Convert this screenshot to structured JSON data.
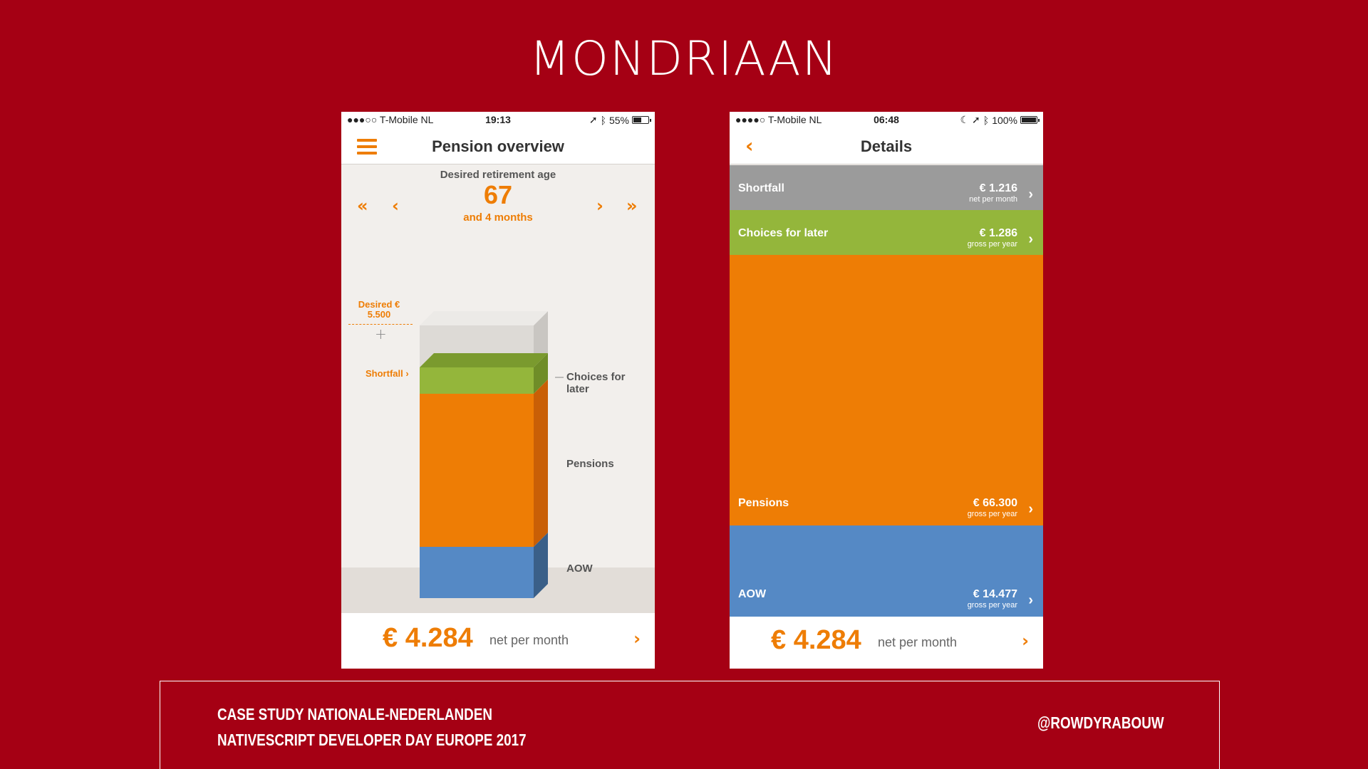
{
  "slide": {
    "title": "MONDRIAAN",
    "footer_line1": "CASE STUDY NATIONALE-NEDERLANDEN",
    "footer_line2": "NATIVESCRIPT DEVELOPER DAY EUROPE 2017",
    "handle": "@ROWDYRABOUW",
    "background": "#a50014"
  },
  "phone1": {
    "status": {
      "carrier": "●●●○○ T-Mobile NL",
      "time": "19:13",
      "battery": "55%",
      "battery_level": 0.55
    },
    "nav_title": "Pension overview",
    "menu_icon": "hamburger-icon",
    "retirement": {
      "label": "Desired retirement age",
      "age": "67",
      "sub": "and 4 months",
      "nav_first": "«",
      "nav_prev": "‹",
      "nav_next": "›",
      "nav_last": "»"
    },
    "chart": {
      "desired_label": "Desired € 5.500",
      "shortfall_label": "Shortfall ›",
      "labels": {
        "choices": "Choices for later",
        "pensions": "Pensions",
        "aow": "AOW"
      }
    },
    "footer": {
      "amount": "€ 4.284",
      "period": "net per month",
      "chevron": "›"
    }
  },
  "phone2": {
    "status": {
      "carrier": "●●●●○ T-Mobile NL",
      "time": "06:48",
      "battery": "100%",
      "battery_level": 1.0
    },
    "nav_title": "Details",
    "back_icon": "back-chevron-icon",
    "rows": [
      {
        "name": "Shortfall",
        "amount": "€ 1.216",
        "sub": "net per month",
        "color": "#9b9b9b"
      },
      {
        "name": "Choices for later",
        "amount": "€ 1.286",
        "sub": "gross per year",
        "color": "#94b63b"
      },
      {
        "name": "Pensions",
        "amount": "€ 66.300",
        "sub": "gross per year",
        "color": "#ee7d05"
      },
      {
        "name": "AOW",
        "amount": "€ 14.477",
        "sub": "gross per year",
        "color": "#5589c5"
      }
    ],
    "footer": {
      "amount": "€ 4.284",
      "period": "net per month",
      "chevron": "›"
    }
  },
  "colors": {
    "orange": "#ee7d05",
    "green": "#94b63b",
    "blue": "#5589c5",
    "grey": "#9b9b9b"
  }
}
